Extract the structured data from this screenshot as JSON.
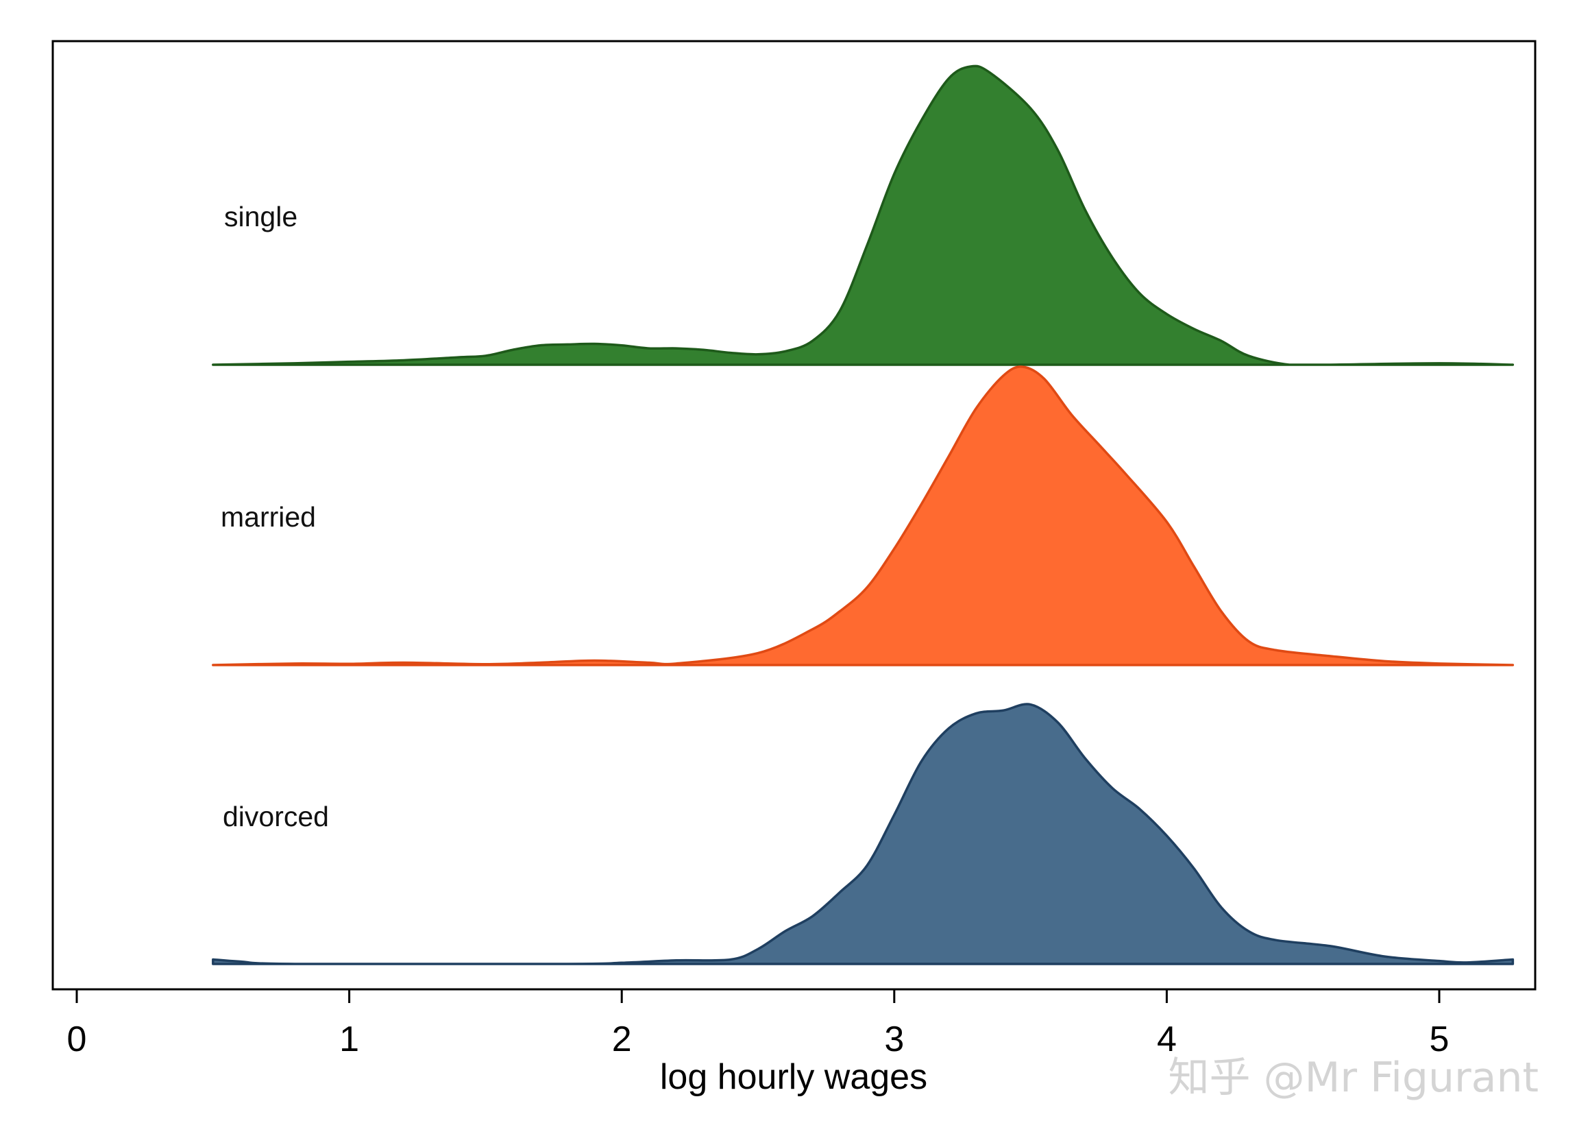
{
  "chart_data": {
    "type": "area",
    "subtype": "ridgeline density",
    "xlabel": "log hourly wages",
    "xlim": [
      0,
      5.3
    ],
    "xticks": [
      0,
      1,
      2,
      3,
      4,
      5
    ],
    "xtick_labels": [
      "0",
      "1",
      "2",
      "3",
      "4",
      "5"
    ],
    "grid": false,
    "series": [
      {
        "name": "single",
        "color": "#33802F",
        "stroke": "#1E5A1A",
        "points": [
          [
            0.5,
            0.0
          ],
          [
            0.8,
            0.005
          ],
          [
            1.0,
            0.01
          ],
          [
            1.2,
            0.015
          ],
          [
            1.4,
            0.025
          ],
          [
            1.5,
            0.03
          ],
          [
            1.6,
            0.05
          ],
          [
            1.7,
            0.065
          ],
          [
            1.8,
            0.068
          ],
          [
            1.9,
            0.07
          ],
          [
            2.0,
            0.065
          ],
          [
            2.1,
            0.055
          ],
          [
            2.2,
            0.055
          ],
          [
            2.3,
            0.05
          ],
          [
            2.4,
            0.04
          ],
          [
            2.5,
            0.035
          ],
          [
            2.6,
            0.045
          ],
          [
            2.7,
            0.08
          ],
          [
            2.8,
            0.18
          ],
          [
            2.9,
            0.4
          ],
          [
            3.0,
            0.64
          ],
          [
            3.1,
            0.82
          ],
          [
            3.2,
            0.96
          ],
          [
            3.28,
            1.0
          ],
          [
            3.35,
            0.98
          ],
          [
            3.5,
            0.86
          ],
          [
            3.6,
            0.72
          ],
          [
            3.7,
            0.52
          ],
          [
            3.8,
            0.36
          ],
          [
            3.9,
            0.24
          ],
          [
            4.0,
            0.17
          ],
          [
            4.1,
            0.12
          ],
          [
            4.2,
            0.08
          ],
          [
            4.3,
            0.03
          ],
          [
            4.45,
            0.0
          ],
          [
            4.6,
            0.0
          ],
          [
            5.0,
            0.005
          ],
          [
            5.27,
            0.0
          ]
        ]
      },
      {
        "name": "married",
        "color": "#FF6A30",
        "stroke": "#E04A14",
        "points": [
          [
            0.5,
            0.0
          ],
          [
            0.8,
            0.005
          ],
          [
            1.0,
            0.004
          ],
          [
            1.2,
            0.008
          ],
          [
            1.5,
            0.003
          ],
          [
            1.7,
            0.008
          ],
          [
            1.9,
            0.015
          ],
          [
            2.1,
            0.008
          ],
          [
            2.2,
            0.005
          ],
          [
            2.5,
            0.04
          ],
          [
            2.7,
            0.12
          ],
          [
            2.8,
            0.18
          ],
          [
            2.9,
            0.26
          ],
          [
            3.0,
            0.39
          ],
          [
            3.1,
            0.54
          ],
          [
            3.2,
            0.7
          ],
          [
            3.3,
            0.86
          ],
          [
            3.4,
            0.97
          ],
          [
            3.47,
            1.0
          ],
          [
            3.55,
            0.96
          ],
          [
            3.65,
            0.84
          ],
          [
            3.75,
            0.74
          ],
          [
            3.85,
            0.64
          ],
          [
            4.0,
            0.48
          ],
          [
            4.1,
            0.33
          ],
          [
            4.2,
            0.18
          ],
          [
            4.3,
            0.08
          ],
          [
            4.4,
            0.05
          ],
          [
            4.6,
            0.03
          ],
          [
            4.8,
            0.013
          ],
          [
            5.0,
            0.005
          ],
          [
            5.27,
            0.0
          ]
        ]
      },
      {
        "name": "divorced",
        "color": "#486C8C",
        "stroke": "#1F3F60",
        "points": [
          [
            0.5,
            0.015
          ],
          [
            0.6,
            0.008
          ],
          [
            0.8,
            0.0
          ],
          [
            1.8,
            0.0
          ],
          [
            2.0,
            0.004
          ],
          [
            2.2,
            0.012
          ],
          [
            2.4,
            0.015
          ],
          [
            2.5,
            0.05
          ],
          [
            2.6,
            0.11
          ],
          [
            2.7,
            0.16
          ],
          [
            2.8,
            0.24
          ],
          [
            2.9,
            0.33
          ],
          [
            3.0,
            0.5
          ],
          [
            3.1,
            0.68
          ],
          [
            3.2,
            0.79
          ],
          [
            3.3,
            0.84
          ],
          [
            3.4,
            0.85
          ],
          [
            3.5,
            0.87
          ],
          [
            3.6,
            0.81
          ],
          [
            3.7,
            0.69
          ],
          [
            3.8,
            0.59
          ],
          [
            3.9,
            0.52
          ],
          [
            4.0,
            0.43
          ],
          [
            4.1,
            0.32
          ],
          [
            4.2,
            0.19
          ],
          [
            4.3,
            0.11
          ],
          [
            4.4,
            0.08
          ],
          [
            4.6,
            0.06
          ],
          [
            4.8,
            0.025
          ],
          [
            5.0,
            0.01
          ],
          [
            5.1,
            0.005
          ],
          [
            5.27,
            0.015
          ]
        ]
      }
    ]
  },
  "watermark": "知乎 @Mr Figurant"
}
